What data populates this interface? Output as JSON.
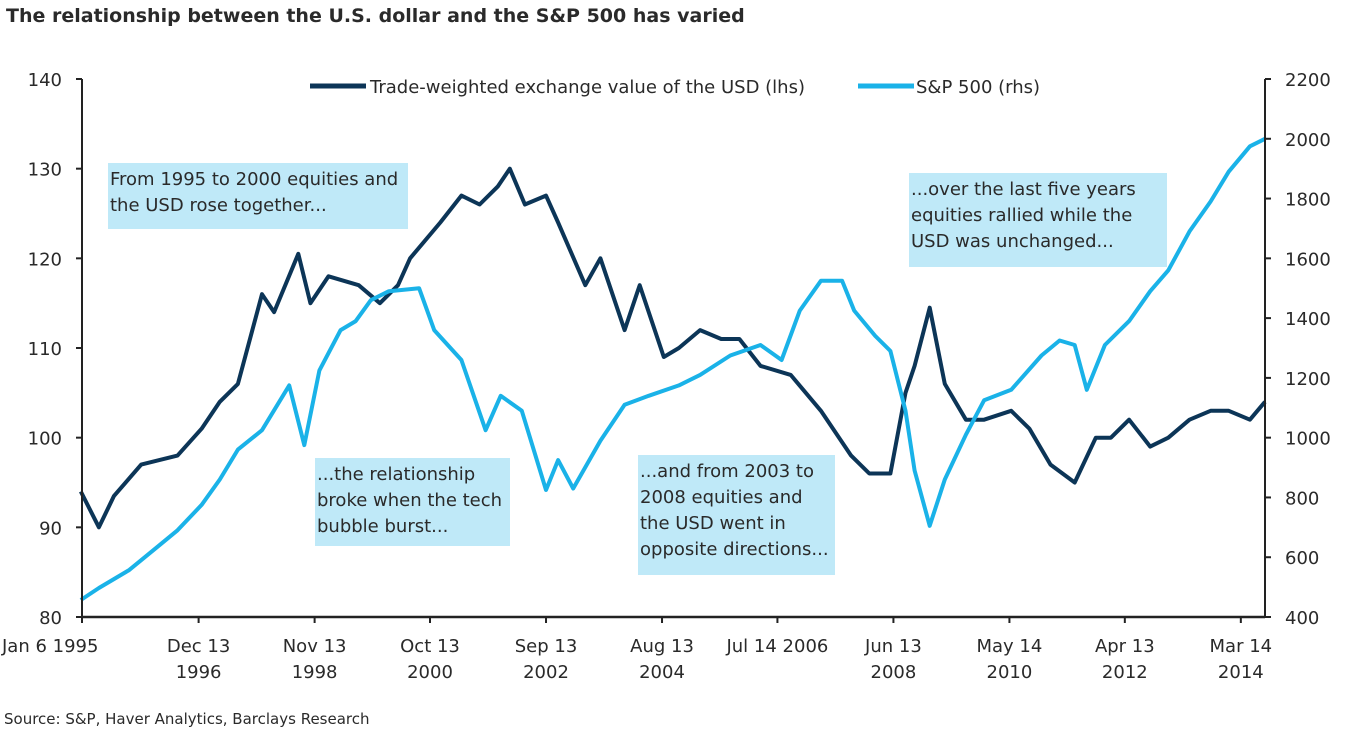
{
  "chart_data": {
    "type": "line",
    "title": "The relationship between the U.S. dollar and the S&P 500 has varied",
    "source": "Source: S&P, Haver Analytics, Barclays Research",
    "xlabel": "",
    "xlim": [
      1995.02,
      2014.6
    ],
    "x_ticks": [
      {
        "at": 1995.02,
        "lines": [
          "Jan 6 1995"
        ]
      },
      {
        "at": 1996.95,
        "lines": [
          "Dec 13",
          "1996"
        ]
      },
      {
        "at": 1998.87,
        "lines": [
          "Nov 13",
          "1998"
        ]
      },
      {
        "at": 2000.78,
        "lines": [
          "Oct 13",
          "2000"
        ]
      },
      {
        "at": 2002.7,
        "lines": [
          "Sep 13",
          "2002"
        ]
      },
      {
        "at": 2004.62,
        "lines": [
          "Aug 13",
          "2004"
        ]
      },
      {
        "at": 2006.53,
        "lines": [
          "Jul 14 2006"
        ]
      },
      {
        "at": 2008.45,
        "lines": [
          "Jun 13",
          "2008"
        ]
      },
      {
        "at": 2010.37,
        "lines": [
          "May 14",
          "2010"
        ]
      },
      {
        "at": 2012.28,
        "lines": [
          "Apr 13",
          "2012"
        ]
      },
      {
        "at": 2014.2,
        "lines": [
          "Mar 14",
          "2014"
        ]
      }
    ],
    "y_left": {
      "label": "lhs",
      "lim": [
        80,
        140
      ],
      "ticks": [
        80,
        90,
        100,
        110,
        120,
        130,
        140
      ]
    },
    "y_right": {
      "label": "rhs",
      "lim": [
        400,
        2200
      ],
      "ticks": [
        400,
        600,
        800,
        1000,
        1200,
        1400,
        1600,
        1800,
        2000,
        2200
      ]
    },
    "legend_position": "top-center",
    "series": [
      {
        "name": "Trade-weighted exchange value of the USD (lhs)",
        "axis": "left",
        "color": "#0c3557",
        "x": [
          1995.0,
          1995.3,
          1995.55,
          1996.0,
          1996.3,
          1996.6,
          1997.0,
          1997.3,
          1997.6,
          1998.0,
          1998.2,
          1998.6,
          1998.8,
          1999.1,
          1999.6,
          1999.95,
          2000.25,
          2000.45,
          2000.95,
          2001.3,
          2001.6,
          2001.9,
          2002.1,
          2002.35,
          2002.7,
          2002.9,
          2003.35,
          2003.6,
          2004.0,
          2004.25,
          2004.65,
          2004.9,
          2005.25,
          2005.6,
          2005.9,
          2006.25,
          2006.75,
          2007.25,
          2007.75,
          2008.05,
          2008.4,
          2008.65,
          2008.8,
          2009.05,
          2009.3,
          2009.65,
          2009.95,
          2010.4,
          2010.7,
          2011.05,
          2011.45,
          2011.8,
          2012.05,
          2012.35,
          2012.7,
          2013.0,
          2013.35,
          2013.7,
          2014.0,
          2014.35,
          2014.6
        ],
        "y": [
          94,
          90,
          93.5,
          97,
          97.5,
          98,
          101,
          104,
          106,
          116,
          114,
          120.5,
          115,
          118,
          117,
          115,
          117,
          120,
          124,
          127,
          126,
          128,
          130,
          126,
          127,
          124,
          117,
          120,
          112,
          117,
          109,
          110,
          112,
          111,
          111,
          108,
          107,
          103,
          98,
          96,
          96,
          105,
          108,
          114.5,
          106,
          102,
          102,
          103,
          101,
          97,
          95,
          100,
          100,
          102,
          99,
          100,
          102,
          103,
          103,
          102,
          104
        ]
      },
      {
        "name": "S&P 500 (rhs)",
        "axis": "right",
        "color": "#1ab2e8",
        "x": [
          1995.0,
          1995.3,
          1995.8,
          1996.3,
          1996.6,
          1997.0,
          1997.3,
          1997.6,
          1998.0,
          1998.45,
          1998.7,
          1998.95,
          1999.3,
          1999.55,
          1999.8,
          2000.1,
          2000.6,
          2000.85,
          2001.3,
          2001.7,
          2001.95,
          2002.3,
          2002.7,
          2002.9,
          2003.15,
          2003.6,
          2004.0,
          2004.4,
          2004.9,
          2005.25,
          2005.75,
          2006.25,
          2006.6,
          2006.9,
          2007.25,
          2007.6,
          2007.8,
          2008.15,
          2008.4,
          2008.65,
          2008.8,
          2009.05,
          2009.3,
          2009.65,
          2009.95,
          2010.4,
          2010.9,
          2011.2,
          2011.45,
          2011.65,
          2011.95,
          2012.35,
          2012.7,
          2013.0,
          2013.35,
          2013.7,
          2014.0,
          2014.35,
          2014.6
        ],
        "y": [
          457,
          497,
          557,
          640,
          690,
          775,
          860,
          960,
          1025,
          1175,
          975,
          1225,
          1360,
          1390,
          1460,
          1490,
          1500,
          1360,
          1260,
          1025,
          1140,
          1090,
          825,
          925,
          830,
          990,
          1110,
          1140,
          1175,
          1210,
          1275,
          1310,
          1260,
          1425,
          1525,
          1525,
          1425,
          1340,
          1290,
          1090,
          890,
          705,
          860,
          1010,
          1125,
          1160,
          1275,
          1325,
          1310,
          1160,
          1310,
          1390,
          1490,
          1560,
          1690,
          1790,
          1890,
          1975,
          2000
        ]
      }
    ],
    "annotations": [
      {
        "lines": [
          "From 1995 to 2000 equities and",
          "the USD rose together..."
        ]
      },
      {
        "lines": [
          "...the relationship",
          "broke when the tech",
          "bubble burst..."
        ]
      },
      {
        "lines": [
          "...and from 2003 to",
          "2008 equities and",
          "the USD went in",
          "opposite directions..."
        ]
      },
      {
        "lines": [
          "...over the last five years",
          "equities rallied while the",
          "USD was unchanged..."
        ]
      }
    ],
    "annotation_color": "#bfe9f8"
  }
}
